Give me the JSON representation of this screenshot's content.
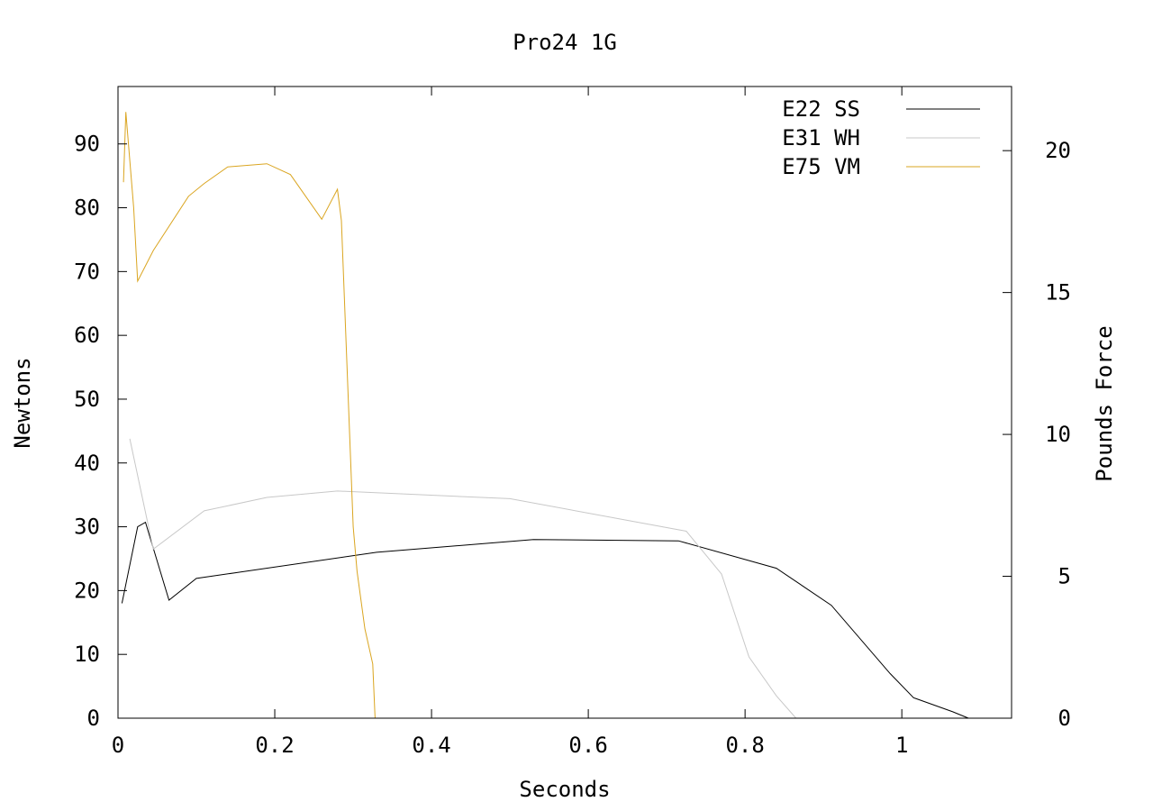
{
  "chart_data": {
    "type": "line",
    "title": "Pro24 1G",
    "xlabel": "Seconds",
    "ylabel": "Newtons",
    "y2label": "Pounds Force",
    "xlim": [
      0,
      1.14
    ],
    "ylim": [
      0,
      99
    ],
    "y2lim": [
      0,
      22.26
    ],
    "x_ticks": [
      0,
      0.2,
      0.4,
      0.6,
      0.8,
      1
    ],
    "x_tick_labels": [
      "0",
      "0.2",
      "0.4",
      "0.6",
      "0.8",
      "1"
    ],
    "y_ticks": [
      0,
      10,
      20,
      30,
      40,
      50,
      60,
      70,
      80,
      90
    ],
    "y_tick_labels": [
      "0",
      "10",
      "20",
      "30",
      "40",
      "50",
      "60",
      "70",
      "80",
      "90"
    ],
    "y2_ticks": [
      0,
      5,
      10,
      15,
      20
    ],
    "y2_tick_labels": [
      "0",
      "5",
      "10",
      "15",
      "20"
    ],
    "grid": false,
    "legend_position": "top-right",
    "series": [
      {
        "name": "E22 SS",
        "color": "#000000",
        "x": [
          0.005,
          0.025,
          0.035,
          0.065,
          0.1,
          0.33,
          0.53,
          0.715,
          0.84,
          0.91,
          0.985,
          1.015,
          1.065,
          1.085
        ],
        "y": [
          18,
          30,
          30.7,
          18.5,
          21.9,
          26,
          28,
          27.8,
          23.5,
          17.7,
          7,
          3.2,
          1,
          0
        ]
      },
      {
        "name": "E31 WH",
        "color": "#c8c8c8",
        "x": [
          0.015,
          0.045,
          0.11,
          0.19,
          0.28,
          0.5,
          0.725,
          0.77,
          0.805,
          0.84,
          0.865
        ],
        "y": [
          43.8,
          26.5,
          32.5,
          34.6,
          35.6,
          34.4,
          29.3,
          22.6,
          9.6,
          3.5,
          0
        ]
      },
      {
        "name": "E75 VM",
        "color": "#daa520",
        "x": [
          0.007,
          0.01,
          0.02,
          0.025,
          0.045,
          0.09,
          0.11,
          0.14,
          0.19,
          0.22,
          0.26,
          0.28,
          0.285,
          0.3,
          0.305,
          0.315,
          0.325,
          0.328
        ],
        "y": [
          84,
          95,
          80,
          68.5,
          73.3,
          81.8,
          83.8,
          86.4,
          86.9,
          85.2,
          78.2,
          82.9,
          78,
          30,
          23,
          14,
          8.5,
          0
        ]
      }
    ]
  }
}
